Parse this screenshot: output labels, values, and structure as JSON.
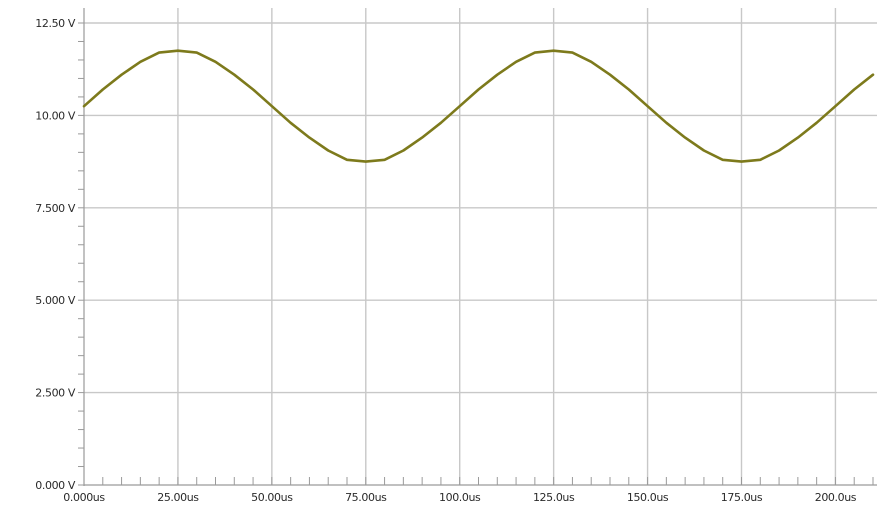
{
  "chart_data": {
    "type": "line",
    "title": "",
    "xlabel": "",
    "ylabel": "",
    "xlim": [
      0,
      210
    ],
    "ylim": [
      0,
      12.5
    ],
    "grid": true,
    "legend": "none",
    "x_ticks": [
      {
        "value": 0,
        "label": "0.000us"
      },
      {
        "value": 25,
        "label": "25.00us"
      },
      {
        "value": 50,
        "label": "50.00us"
      },
      {
        "value": 75,
        "label": "75.00us"
      },
      {
        "value": 100,
        "label": "100.0us"
      },
      {
        "value": 125,
        "label": "125.0us"
      },
      {
        "value": 150,
        "label": "150.0us"
      },
      {
        "value": 175,
        "label": "175.0us"
      },
      {
        "value": 200,
        "label": "200.0us"
      }
    ],
    "y_ticks": [
      {
        "value": 0,
        "label": "0.000 V"
      },
      {
        "value": 2.5,
        "label": "2.500 V"
      },
      {
        "value": 5,
        "label": "5.000 V"
      },
      {
        "value": 7.5,
        "label": "7.500 V"
      },
      {
        "value": 10,
        "label": "10.00 V"
      },
      {
        "value": 12.5,
        "label": "12.50 V"
      }
    ],
    "series": [
      {
        "color": "#7d7a1c",
        "x": [
          0,
          5,
          10,
          15,
          20,
          25,
          30,
          35,
          40,
          45,
          50,
          55,
          60,
          65,
          70,
          75,
          80,
          85,
          90,
          95,
          100,
          105,
          110,
          115,
          120,
          125,
          130,
          135,
          140,
          145,
          150,
          155,
          160,
          165,
          170,
          175,
          180,
          185,
          190,
          195,
          200,
          205,
          210
        ],
        "y": [
          10.25,
          10.7,
          11.1,
          11.45,
          11.7,
          11.75,
          11.7,
          11.45,
          11.1,
          10.7,
          10.25,
          9.8,
          9.4,
          9.05,
          8.8,
          8.75,
          8.8,
          9.05,
          9.4,
          9.8,
          10.25,
          10.7,
          11.1,
          11.45,
          11.7,
          11.75,
          11.7,
          11.45,
          11.1,
          10.7,
          10.25,
          9.8,
          9.4,
          9.05,
          8.8,
          8.75,
          8.8,
          9.05,
          9.4,
          9.8,
          10.25,
          10.7,
          11.1
        ]
      }
    ]
  },
  "colors": {
    "grid": "#c8c8c8",
    "axis": "#9a9a9a",
    "trace": "#7d7a1c",
    "background": "#ffffff"
  }
}
